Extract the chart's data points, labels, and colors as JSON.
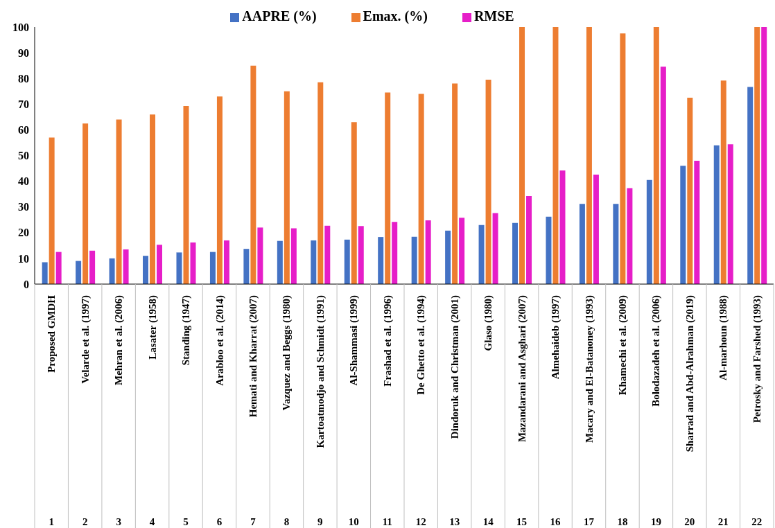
{
  "chart_data": {
    "type": "bar",
    "categories": [
      "Proposed GMDH",
      "Velarde et al. (1997)",
      "Mehran et al. (2006)",
      "Lasater (1958)",
      "Standing (1947)",
      "Arabloo et al. (2014)",
      "Hemati and Kharrat (2007)",
      "Vazquez and Beggs (1980)",
      "Kartoatmodjo and Schmidt (1991)",
      "Al-Shammasi (1999)",
      "Frashad et al. (1996)",
      "De Ghetto et al. (1994)",
      "Dindoruk and Christman (2001)",
      "Glaso (1980)",
      "Mazandarani and Asghari (2007)",
      "Almehaideb (1997)",
      "Macary and El-Batanoney (1993)",
      "Khamechi et al. (2009)",
      "Bolodazadeh et al. (2006)",
      "Sharrad and Abd-Alrahman (2019)",
      "Al-marhoun (1988)",
      "Petrosky and Farshed (1993)"
    ],
    "series": [
      {
        "name": "AAPRE (%)",
        "color": "#4472c4",
        "values": [
          8.5,
          9,
          10,
          11,
          12.3,
          12.5,
          13.7,
          16.8,
          17,
          17.3,
          18.3,
          18.4,
          20.8,
          23,
          23.8,
          26.2,
          31.2,
          31.2,
          40.5,
          46,
          54,
          76.7
        ]
      },
      {
        "name": "Emax. (%)",
        "color": "#ed7d31",
        "values": [
          57,
          62.5,
          64,
          66,
          69.3,
          73,
          85,
          75,
          78.5,
          63,
          74.5,
          74,
          78,
          79.5,
          100,
          100,
          100,
          97.5,
          100,
          72.5,
          79.2,
          100
        ]
      },
      {
        "name": "RMSE",
        "color": "#e61ec8",
        "values": [
          12.5,
          13,
          13.5,
          15.3,
          16.2,
          17,
          22,
          21.7,
          22.7,
          22.6,
          24.2,
          24.8,
          25.8,
          27.6,
          34.2,
          44.2,
          42.6,
          37.3,
          84.6,
          48,
          54.4,
          100
        ]
      }
    ],
    "ylim": [
      0,
      100
    ],
    "yticks": [
      0,
      10,
      20,
      30,
      40,
      50,
      60,
      70,
      80,
      90,
      100
    ],
    "legend": "top",
    "annotations": [
      "1",
      "2",
      "3",
      "4",
      "5",
      "6",
      "7",
      "8",
      "9",
      "10",
      "11",
      "12",
      "13",
      "14",
      "15",
      "16",
      "17",
      "18",
      "19",
      "20",
      "21",
      "22"
    ]
  }
}
